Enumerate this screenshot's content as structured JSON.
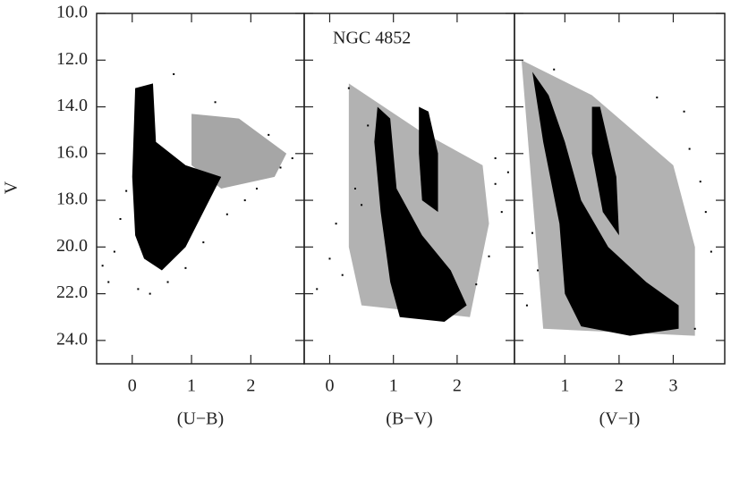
{
  "chart_data": [
    {
      "type": "scatter",
      "x_label": "(U−B)",
      "y_label": "V",
      "xlim": [
        -0.6,
        2.9
      ],
      "ylim": [
        25,
        10
      ],
      "xticks": [
        0,
        1,
        2
      ],
      "yticks": [
        {
          "value": 10,
          "label": "10.0"
        },
        {
          "value": 12,
          "label": "12.0"
        },
        {
          "value": 14,
          "label": "14.0"
        },
        {
          "value": 16,
          "label": "16.0"
        },
        {
          "value": 18,
          "label": "18.0"
        },
        {
          "value": 20,
          "label": "20.0"
        },
        {
          "value": 22,
          "label": "22.0"
        },
        {
          "value": 24,
          "label": "24.0"
        }
      ],
      "ytick_labels": true,
      "regions": [
        {
          "color": "#000000",
          "opacity": 0.35,
          "x": [
            1.0,
            1.8,
            2.6,
            2.4,
            1.5,
            1.0
          ],
          "y": [
            14.3,
            14.5,
            16.0,
            17.0,
            17.5,
            16.5
          ]
        },
        {
          "color": "#000000",
          "opacity": 1,
          "x": [
            0.05,
            0.35,
            0.4,
            0.9,
            1.5,
            1.2,
            0.9,
            0.5,
            0.2,
            0.05,
            0.0
          ],
          "y": [
            13.2,
            13.0,
            15.5,
            16.5,
            17.0,
            18.5,
            20.0,
            21.0,
            20.5,
            19.5,
            17.0
          ]
        }
      ],
      "points": {
        "color": "#000000",
        "x": [
          -0.4,
          -0.3,
          -0.2,
          -0.1,
          0.1,
          0.3,
          0.6,
          0.9,
          1.2,
          1.6,
          1.9,
          2.1,
          2.3,
          2.5,
          2.7,
          1.4,
          0.7,
          -0.5
        ],
        "y": [
          21.5,
          20.2,
          18.8,
          17.6,
          21.8,
          22.0,
          21.5,
          20.9,
          19.8,
          18.6,
          18.0,
          17.5,
          15.2,
          16.6,
          16.2,
          13.8,
          12.6,
          20.8
        ]
      }
    },
    {
      "type": "scatter",
      "title": "NGC 4852",
      "x_label": "(B−V)",
      "xlim": [
        -0.4,
        2.9
      ],
      "ylim": [
        25,
        10
      ],
      "xticks": [
        0,
        1,
        2
      ],
      "yticks": [
        10,
        12,
        14,
        16,
        18,
        20,
        22,
        24
      ],
      "ytick_labels": false,
      "regions": [
        {
          "color": "#000000",
          "opacity": 0.3,
          "x": [
            0.3,
            1.4,
            2.4,
            2.5,
            2.2,
            0.5,
            0.3
          ],
          "y": [
            13.0,
            15.0,
            16.5,
            19.0,
            23.0,
            22.5,
            20.0
          ]
        },
        {
          "color": "#000000",
          "opacity": 1,
          "x": [
            0.75,
            0.95,
            1.05,
            1.45,
            1.9,
            2.15,
            1.8,
            1.1,
            0.95,
            0.8,
            0.7
          ],
          "y": [
            14.0,
            14.5,
            17.5,
            19.5,
            21.0,
            22.5,
            23.2,
            23.0,
            21.5,
            18.5,
            15.5
          ]
        },
        {
          "color": "#000000",
          "opacity": 1,
          "x": [
            1.4,
            1.55,
            1.7,
            1.7,
            1.45,
            1.4
          ],
          "y": [
            14.0,
            14.2,
            16.0,
            18.5,
            18.0,
            16.0
          ]
        }
      ],
      "points": {
        "color": "#000000",
        "x": [
          -0.2,
          0.0,
          0.1,
          0.2,
          0.4,
          0.5,
          2.6,
          2.7,
          2.5,
          2.3,
          2.6,
          0.3,
          0.6,
          2.8
        ],
        "y": [
          21.8,
          20.5,
          19.0,
          21.2,
          17.5,
          18.2,
          16.2,
          18.5,
          20.4,
          21.6,
          17.3,
          13.2,
          14.8,
          16.8
        ]
      }
    },
    {
      "type": "scatter",
      "x_label": "(V−I)",
      "xlim": [
        0.07,
        3.95
      ],
      "ylim": [
        25,
        10
      ],
      "xticks": [
        1,
        2,
        3
      ],
      "yticks": [
        10,
        12,
        14,
        16,
        18,
        20,
        22,
        24
      ],
      "ytick_labels": false,
      "regions": [
        {
          "color": "#000000",
          "opacity": 0.3,
          "x": [
            0.2,
            1.5,
            3.0,
            3.4,
            3.4,
            0.6
          ],
          "y": [
            12.0,
            13.5,
            16.5,
            20.0,
            23.8,
            23.5
          ]
        },
        {
          "color": "#000000",
          "opacity": 1,
          "x": [
            0.4,
            0.7,
            1.0,
            1.3,
            1.8,
            2.5,
            3.1,
            3.1,
            2.2,
            1.3,
            1.0,
            0.9,
            0.6
          ],
          "y": [
            12.5,
            13.5,
            15.5,
            18.0,
            20.0,
            21.5,
            22.5,
            23.5,
            23.8,
            23.4,
            22.0,
            19.0,
            15.5
          ]
        },
        {
          "color": "#000000",
          "opacity": 1,
          "x": [
            1.5,
            1.65,
            1.95,
            2.0,
            1.7,
            1.5
          ],
          "y": [
            14.0,
            14.0,
            17.0,
            19.5,
            18.5,
            16.0
          ]
        }
      ],
      "points": {
        "color": "#000000",
        "x": [
          0.3,
          0.5,
          3.5,
          3.6,
          3.3,
          3.7,
          3.4,
          0.4,
          0.8,
          3.2,
          2.7,
          3.8
        ],
        "y": [
          22.5,
          21.0,
          17.2,
          18.5,
          15.8,
          20.2,
          23.5,
          19.4,
          12.4,
          14.2,
          13.6,
          22.0
        ]
      }
    }
  ]
}
